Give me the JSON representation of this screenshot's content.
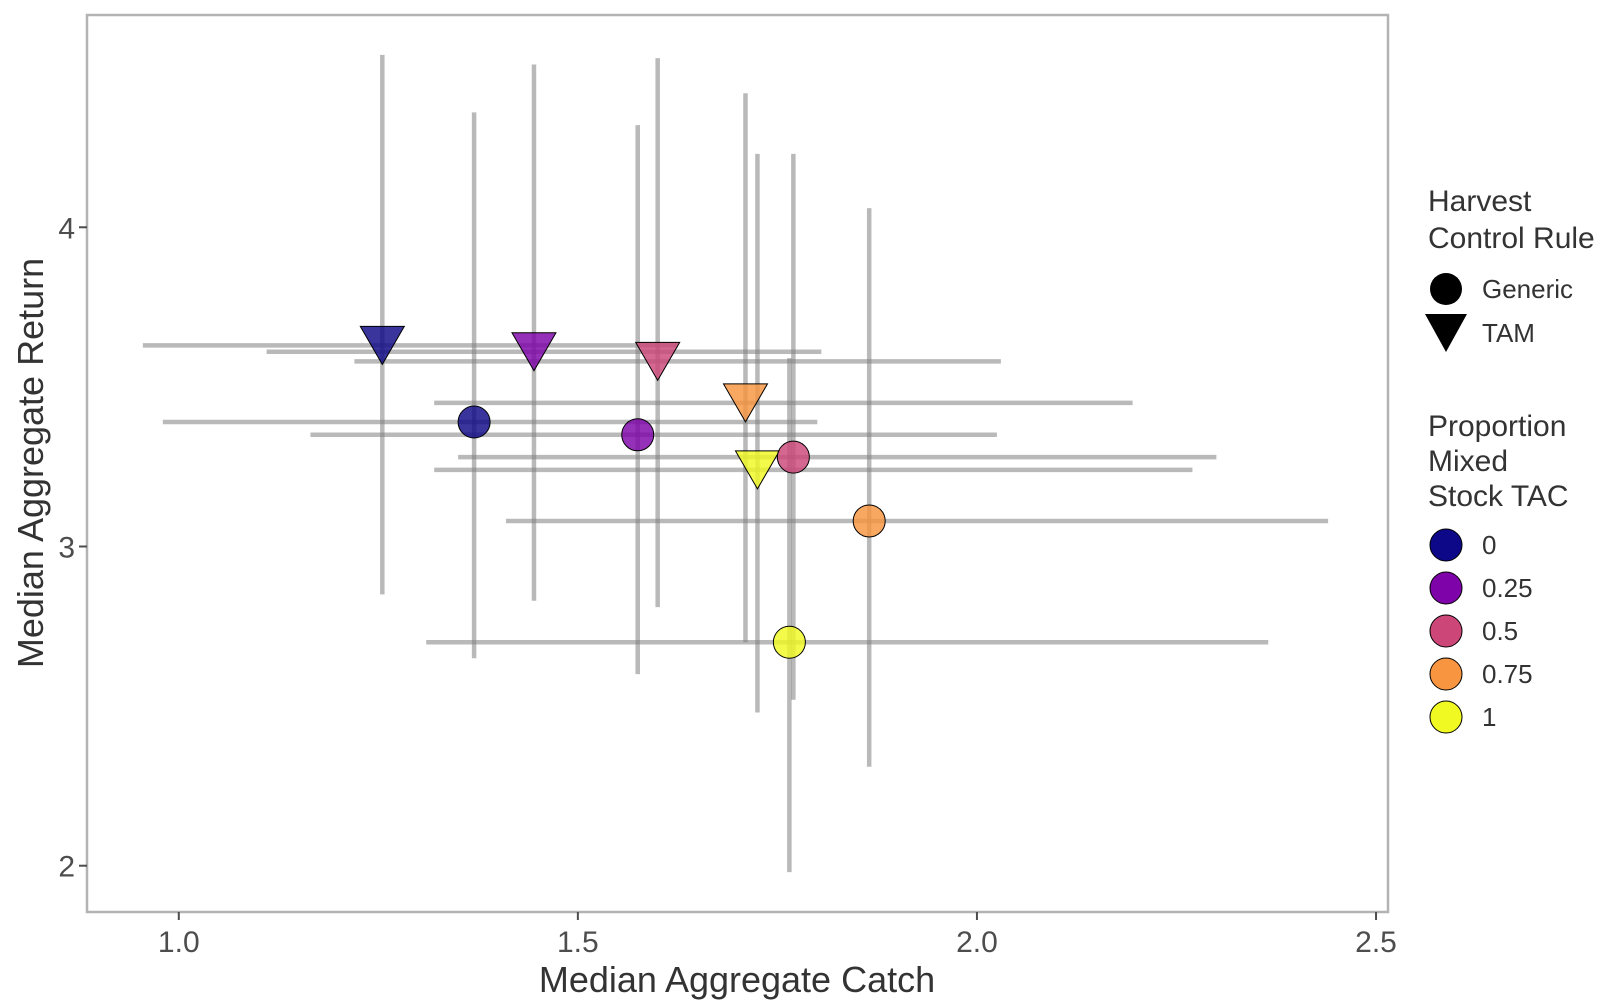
{
  "chart_data": {
    "type": "scatter",
    "xlabel": "Median Aggregate Catch",
    "ylabel": "Median Aggregate Return",
    "xlim": [
      0.885,
      2.515
    ],
    "ylim": [
      1.855,
      4.665
    ],
    "x_ticks": [
      1.0,
      1.5,
      2.0,
      2.5
    ],
    "x_tick_labels": [
      "1.0",
      "1.5",
      "2.0",
      "2.5"
    ],
    "y_ticks": [
      2,
      3,
      4
    ],
    "y_tick_labels": [
      "2",
      "3",
      "4"
    ],
    "grid": false,
    "legend_position": "right",
    "shape_legend": {
      "title_lines": [
        "Harvest",
        "Control Rule"
      ],
      "items": [
        {
          "label": "Generic",
          "shape": "circle"
        },
        {
          "label": "TAM",
          "shape": "triangle-down"
        }
      ]
    },
    "color_legend": {
      "title_lines": [
        "Proportion",
        "Mixed",
        "Stock TAC"
      ],
      "items": [
        {
          "label": "0",
          "color": "#0d0887"
        },
        {
          "label": "0.25",
          "color": "#7e03a8"
        },
        {
          "label": "0.5",
          "color": "#cc4778"
        },
        {
          "label": "0.75",
          "color": "#f89540"
        },
        {
          "label": "1",
          "color": "#f0f921"
        }
      ]
    },
    "points": [
      {
        "rule": "TAM",
        "prop": "0",
        "color": "#0d0887",
        "x": 1.255,
        "y": 3.63,
        "xmin": 0.955,
        "xmax": 1.625,
        "ymin": 2.85,
        "ymax": 4.54
      },
      {
        "rule": "TAM",
        "prop": "0.25",
        "color": "#7e03a8",
        "x": 1.445,
        "y": 3.61,
        "xmin": 1.11,
        "xmax": 1.805,
        "ymin": 2.83,
        "ymax": 4.51
      },
      {
        "rule": "TAM",
        "prop": "0.5",
        "color": "#cc4778",
        "x": 1.6,
        "y": 3.58,
        "xmin": 1.22,
        "xmax": 2.03,
        "ymin": 2.81,
        "ymax": 4.53
      },
      {
        "rule": "TAM",
        "prop": "0.75",
        "color": "#f89540",
        "x": 1.71,
        "y": 3.45,
        "xmin": 1.32,
        "xmax": 2.195,
        "ymin": 2.7,
        "ymax": 4.42
      },
      {
        "rule": "TAM",
        "prop": "1",
        "color": "#f0f921",
        "x": 1.725,
        "y": 3.24,
        "xmin": 1.32,
        "xmax": 2.27,
        "ymin": 2.48,
        "ymax": 4.23
      },
      {
        "rule": "Generic",
        "prop": "0",
        "color": "#0d0887",
        "x": 1.37,
        "y": 3.39,
        "xmin": 0.98,
        "xmax": 1.8,
        "ymin": 2.65,
        "ymax": 4.36
      },
      {
        "rule": "Generic",
        "prop": "0.25",
        "color": "#7e03a8",
        "x": 1.575,
        "y": 3.35,
        "xmin": 1.165,
        "xmax": 2.025,
        "ymin": 2.6,
        "ymax": 4.32
      },
      {
        "rule": "Generic",
        "prop": "0.5",
        "color": "#cc4778",
        "x": 1.77,
        "y": 3.28,
        "xmin": 1.35,
        "xmax": 2.3,
        "ymin": 2.52,
        "ymax": 4.23
      },
      {
        "rule": "Generic",
        "prop": "0.75",
        "color": "#f89540",
        "x": 1.865,
        "y": 3.08,
        "xmin": 1.41,
        "xmax": 2.44,
        "ymin": 2.31,
        "ymax": 4.06
      },
      {
        "rule": "Generic",
        "prop": "1",
        "color": "#f0f921",
        "x": 1.765,
        "y": 2.7,
        "xmin": 1.31,
        "xmax": 2.365,
        "ymin": 1.98,
        "ymax": 3.59
      }
    ]
  }
}
